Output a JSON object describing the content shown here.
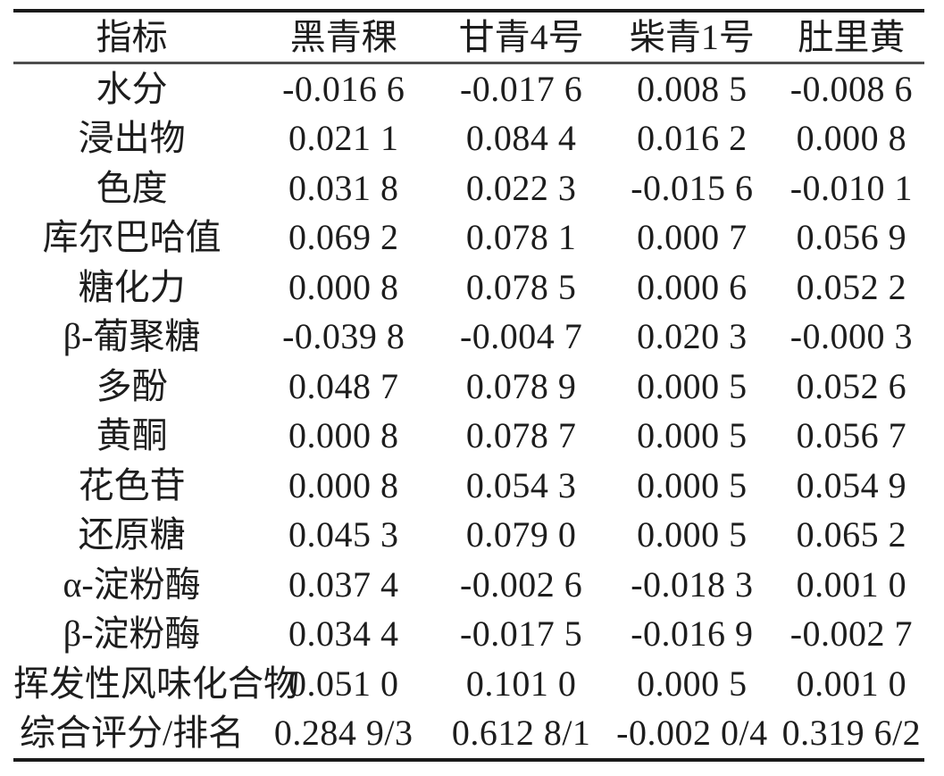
{
  "table": {
    "header": [
      "指标",
      "黑青稞",
      "甘青4号",
      "柴青1号",
      "肚里黄"
    ],
    "rows": [
      {
        "label": "水分",
        "values": [
          "-0.016 6",
          "-0.017 6",
          "0.008 5",
          "-0.008 6"
        ]
      },
      {
        "label": "浸出物",
        "values": [
          "0.021 1",
          "0.084 4",
          "0.016 2",
          "0.000 8"
        ]
      },
      {
        "label": "色度",
        "values": [
          "0.031 8",
          "0.022 3",
          "-0.015 6",
          "-0.010 1"
        ]
      },
      {
        "label": "库尔巴哈值",
        "values": [
          "0.069 2",
          "0.078 1",
          "0.000 7",
          "0.056 9"
        ]
      },
      {
        "label": "糖化力",
        "values": [
          "0.000 8",
          "0.078 5",
          "0.000 6",
          "0.052 2"
        ]
      },
      {
        "label": "β-葡聚糖",
        "values": [
          "-0.039 8",
          "-0.004 7",
          "0.020 3",
          "-0.000 3"
        ]
      },
      {
        "label": "多酚",
        "values": [
          "0.048 7",
          "0.078 9",
          "0.000 5",
          "0.052 6"
        ]
      },
      {
        "label": "黄酮",
        "values": [
          "0.000 8",
          "0.078 7",
          "0.000 5",
          "0.056 7"
        ]
      },
      {
        "label": "花色苷",
        "values": [
          "0.000 8",
          "0.054 3",
          "0.000 5",
          "0.054 9"
        ]
      },
      {
        "label": "还原糖",
        "values": [
          "0.045 3",
          "0.079 0",
          "0.000 5",
          "0.065 2"
        ]
      },
      {
        "label": "α-淀粉酶",
        "values": [
          "0.037 4",
          "-0.002 6",
          "-0.018 3",
          "0.001 0"
        ]
      },
      {
        "label": "β-淀粉酶",
        "values": [
          "0.034 4",
          "-0.017 5",
          "-0.016 9",
          "-0.002 7"
        ]
      },
      {
        "label": "挥发性风味化合物",
        "values": [
          "0.051 0",
          "0.101 0",
          "0.000 5",
          "0.001 0"
        ]
      },
      {
        "label": "综合评分/排名",
        "values": [
          "0.284 9/3",
          "0.612 8/1",
          "-0.002 0/4",
          "0.319 6/2"
        ]
      }
    ]
  },
  "colors": {
    "text": "#1d1d1d",
    "rule_heavy": "#1a1a1a",
    "rule_light": "#4d4d4d",
    "background": "#ffffff"
  }
}
